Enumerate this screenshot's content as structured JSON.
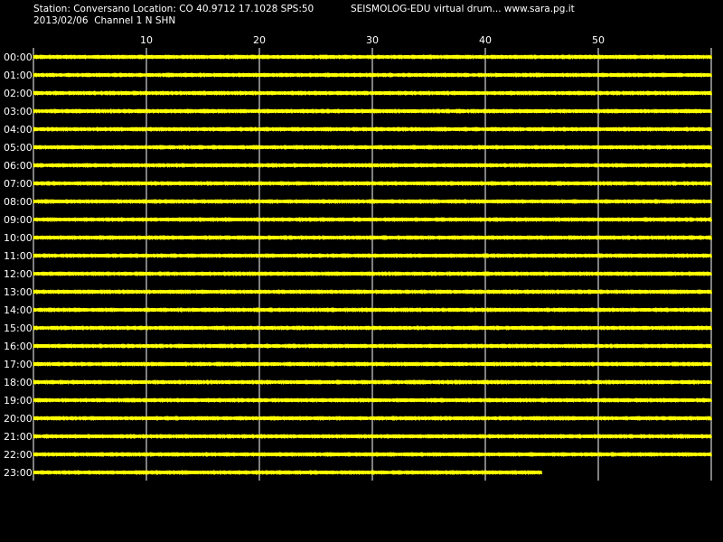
{
  "header": {
    "station_line": "Station: Conversano Location: CO 40.9712 17.1028 SPS:50",
    "app_title": "SEISMOLOG-EDU virtual drum... www.sara.pg.it",
    "date_channel": "2013/02/06  Channel 1 N SHN"
  },
  "colors": {
    "background": "#000000",
    "trace": "#ffff00",
    "grid": "#ffffff",
    "text": "#ffffff"
  },
  "chart_data": {
    "type": "line",
    "title": "",
    "xlabel": "",
    "ylabel": "",
    "x_ticks": [
      10,
      20,
      30,
      40,
      50
    ],
    "x_range": [
      0,
      60
    ],
    "grid": "vertical",
    "rows": [
      {
        "label": "00:00",
        "end_minute": 60
      },
      {
        "label": "01:00",
        "end_minute": 60
      },
      {
        "label": "02:00",
        "end_minute": 60
      },
      {
        "label": "03:00",
        "end_minute": 60
      },
      {
        "label": "04:00",
        "end_minute": 60
      },
      {
        "label": "05:00",
        "end_minute": 60
      },
      {
        "label": "06:00",
        "end_minute": 60
      },
      {
        "label": "07:00",
        "end_minute": 60
      },
      {
        "label": "08:00",
        "end_minute": 60
      },
      {
        "label": "09:00",
        "end_minute": 60
      },
      {
        "label": "10:00",
        "end_minute": 60
      },
      {
        "label": "11:00",
        "end_minute": 60
      },
      {
        "label": "12:00",
        "end_minute": 60
      },
      {
        "label": "13:00",
        "end_minute": 60
      },
      {
        "label": "14:00",
        "end_minute": 60
      },
      {
        "label": "15:00",
        "end_minute": 60
      },
      {
        "label": "16:00",
        "end_minute": 60
      },
      {
        "label": "17:00",
        "end_minute": 60
      },
      {
        "label": "18:00",
        "end_minute": 60
      },
      {
        "label": "19:00",
        "end_minute": 60
      },
      {
        "label": "20:00",
        "end_minute": 60
      },
      {
        "label": "21:00",
        "end_minute": 60
      },
      {
        "label": "22:00",
        "end_minute": 60
      },
      {
        "label": "23:00",
        "end_minute": 45
      }
    ]
  }
}
